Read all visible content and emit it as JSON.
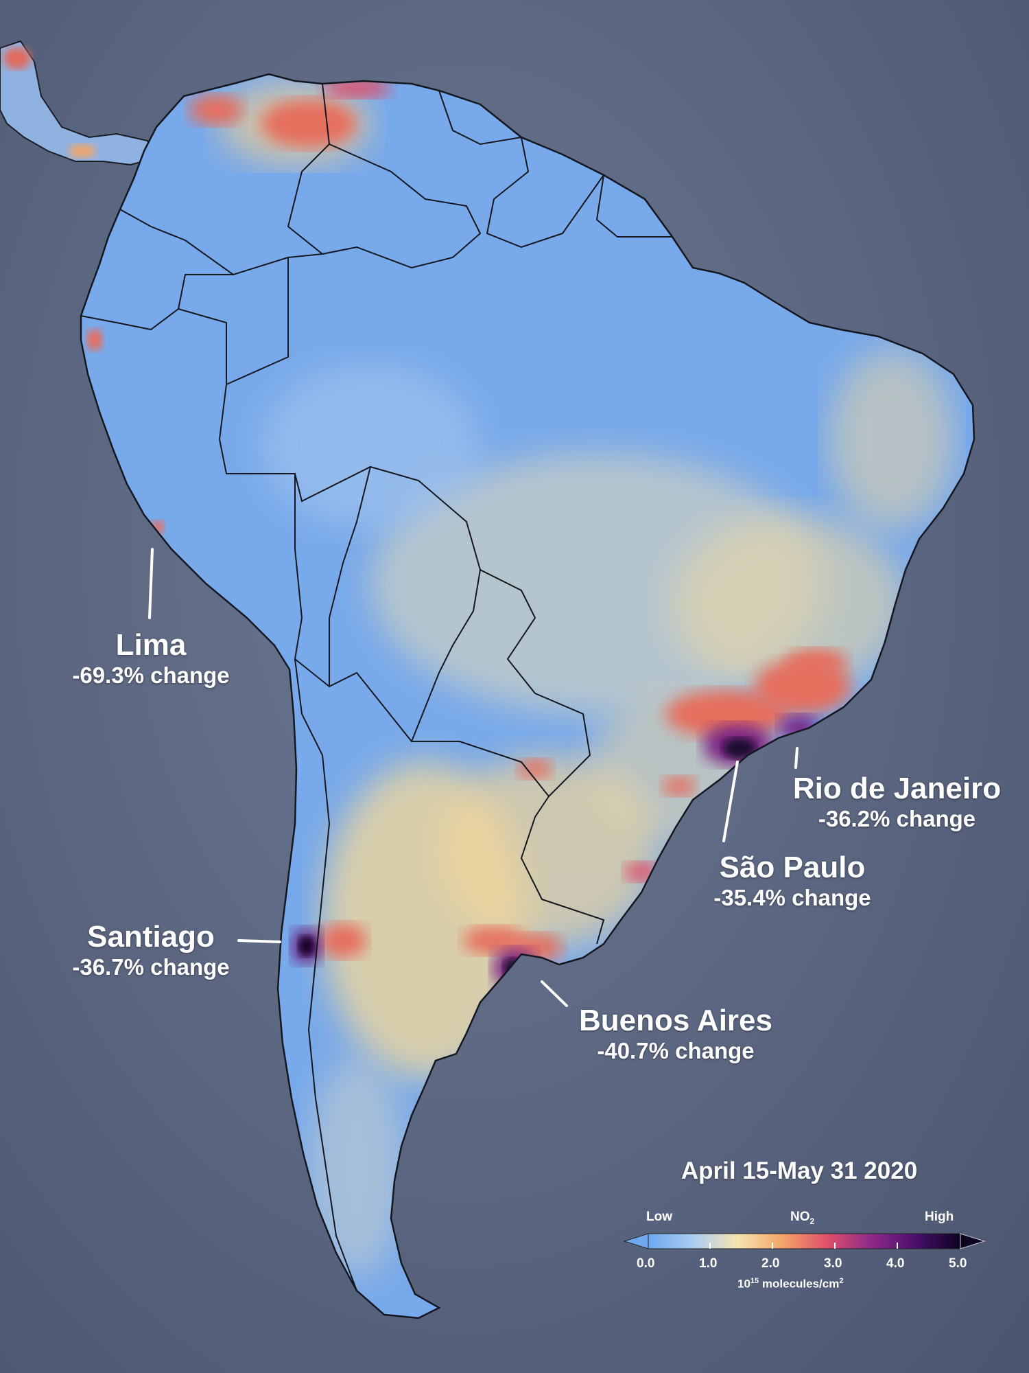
{
  "date_title": "April 15-May 31 2020",
  "cities": [
    {
      "id": "lima",
      "name": "Lima",
      "change": "-69.3% change"
    },
    {
      "id": "santiago",
      "name": "Santiago",
      "change": "-36.7% change"
    },
    {
      "id": "buenos-aires",
      "name": "Buenos Aires",
      "change": "-40.7% change"
    },
    {
      "id": "sao-paulo",
      "name": "São Paulo",
      "change": "-35.4% change"
    },
    {
      "id": "rio",
      "name": "Rio de Janeiro",
      "change": "-36.2% change"
    }
  ],
  "legend": {
    "low_label": "Low",
    "high_label": "High",
    "pollutant": "NO",
    "pollutant_sub": "2",
    "ticks": [
      "0.0",
      "1.0",
      "2.0",
      "3.0",
      "4.0",
      "5.0"
    ],
    "units_prefix": "10",
    "units_exp": "15",
    "units_rest": " molecules/cm",
    "units_exp2": "2",
    "colors": [
      "#6fa8f0",
      "#a9cdf2",
      "#f6e3b0",
      "#f3a66a",
      "#e0506a",
      "#8e2a8a",
      "#4a0f6d",
      "#0b0420"
    ]
  }
}
